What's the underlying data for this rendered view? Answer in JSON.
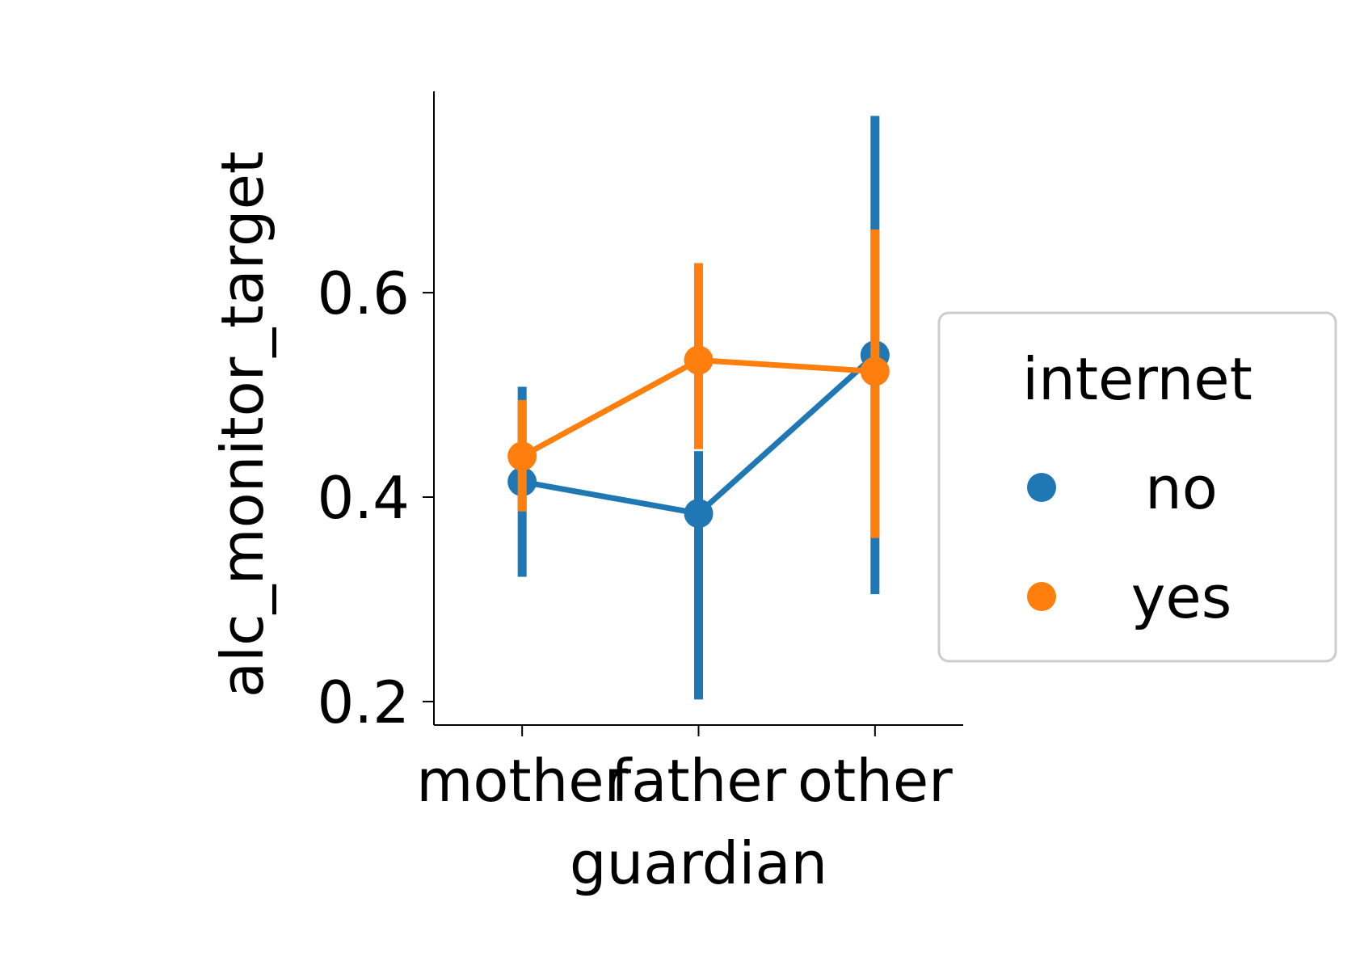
{
  "chart_data": {
    "type": "point",
    "title": "",
    "xlabel": "guardian",
    "ylabel": "alc_monitor_target",
    "categories": [
      "mother",
      "father",
      "other"
    ],
    "ylim": [
      0.177,
      0.797
    ],
    "yticks": [
      0.2,
      0.4,
      0.6
    ],
    "ytick_labels": [
      "0.2",
      "0.4",
      "0.6"
    ],
    "legend": {
      "title": "internet",
      "position": "right",
      "entries": [
        "no",
        "yes"
      ]
    },
    "series": [
      {
        "name": "no",
        "color": "#1f77b4",
        "values": [
          0.415,
          0.384,
          0.539
        ],
        "ci_low": [
          0.322,
          0.202,
          0.305
        ],
        "ci_high": [
          0.508,
          0.445,
          0.773
        ]
      },
      {
        "name": "yes",
        "color": "#ff7f0e",
        "values": [
          0.44,
          0.534,
          0.523
        ],
        "ci_low": [
          0.386,
          0.447,
          0.36
        ],
        "ci_high": [
          0.495,
          0.629,
          0.662
        ]
      }
    ]
  }
}
